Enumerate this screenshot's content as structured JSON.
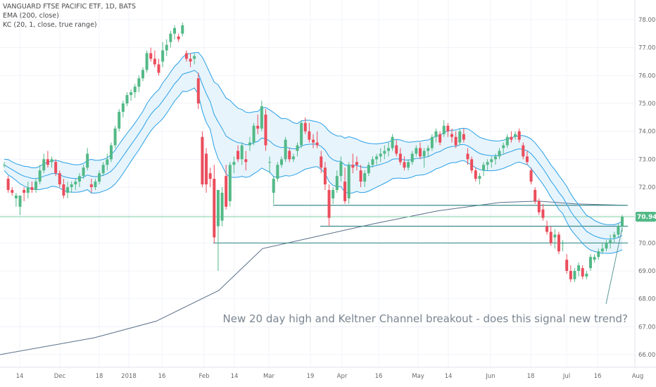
{
  "legend": {
    "symbol": "VANGUARD FTSE PACIFIC ETF, 1D, BATS",
    "ema": "EMA (200, close)",
    "kc": "KC (20, 1, close, true range)"
  },
  "annotation": "New 20 day high and Keltner Channel breakout - does this signal new trend?",
  "last_price": "70.94",
  "chart_data": {
    "type": "candlestick",
    "title": "VANGUARD FTSE PACIFIC ETF, 1D, BATS",
    "ylim": [
      65.6,
      78.4
    ],
    "y_ticks": [
      "66.00",
      "67.00",
      "68.00",
      "69.00",
      "70.00",
      "71.00",
      "72.00",
      "73.00",
      "74.00",
      "75.00",
      "76.00",
      "77.00",
      "78.00"
    ],
    "x_ticks": [
      "14",
      "Dec",
      "18",
      "2018",
      "16",
      "Feb",
      "14",
      "Mar",
      "19",
      "Apr",
      "16",
      "May",
      "14",
      "Jun",
      "18",
      "Jul",
      "16",
      "Aug"
    ],
    "horizontal_levels": [
      71.35,
      70.6,
      70.0,
      70.94
    ],
    "colors": {
      "up": "#53b987",
      "down": "#eb4d5c",
      "kc": "#29a0e6",
      "kc_fill": "#e3f2fc",
      "ema": "#5a6e88",
      "level": "#3c8c8c",
      "price_badge": "#53b987"
    },
    "candles": [
      [
        72.8,
        72.9,
        72.7,
        72.8
      ],
      [
        72.3,
        72.4,
        71.8,
        71.9
      ],
      [
        71.9,
        72.0,
        71.7,
        71.8
      ],
      [
        71.6,
        71.8,
        71.3,
        71.7
      ],
      [
        71.3,
        71.7,
        71.0,
        71.7
      ],
      [
        71.9,
        72.0,
        71.5,
        71.8
      ],
      [
        71.8,
        72.2,
        71.6,
        72.0
      ],
      [
        72.0,
        72.2,
        71.8,
        71.9
      ],
      [
        71.9,
        72.3,
        71.8,
        72.2
      ],
      [
        72.2,
        72.8,
        72.1,
        72.6
      ],
      [
        72.6,
        73.2,
        72.5,
        73.0
      ],
      [
        73.0,
        73.3,
        72.7,
        72.8
      ],
      [
        72.9,
        73.1,
        72.7,
        73.0
      ],
      [
        72.9,
        73.0,
        72.4,
        72.5
      ],
      [
        72.5,
        72.6,
        72.0,
        72.1
      ],
      [
        72.1,
        72.3,
        71.6,
        71.7
      ],
      [
        71.8,
        72.2,
        71.6,
        72.0
      ],
      [
        72.0,
        72.2,
        71.8,
        72.1
      ],
      [
        72.1,
        72.3,
        71.9,
        72.2
      ],
      [
        72.2,
        72.5,
        72.0,
        72.4
      ],
      [
        72.4,
        72.8,
        72.3,
        72.7
      ],
      [
        72.7,
        73.4,
        72.6,
        73.2
      ],
      [
        72.1,
        72.3,
        71.8,
        72.0
      ],
      [
        72.0,
        72.3,
        71.9,
        72.2
      ],
      [
        72.2,
        72.6,
        72.1,
        72.5
      ],
      [
        72.5,
        72.9,
        72.4,
        72.8
      ],
      [
        72.8,
        73.2,
        72.6,
        73.0
      ],
      [
        73.0,
        73.6,
        72.9,
        73.5
      ],
      [
        73.5,
        74.2,
        73.4,
        74.1
      ],
      [
        74.1,
        74.8,
        74.0,
        74.7
      ],
      [
        74.7,
        75.1,
        74.5,
        75.0
      ],
      [
        75.0,
        75.4,
        74.9,
        75.3
      ],
      [
        75.3,
        75.5,
        75.1,
        75.4
      ],
      [
        75.4,
        75.7,
        75.2,
        75.6
      ],
      [
        75.6,
        76.0,
        75.4,
        75.9
      ],
      [
        75.9,
        76.3,
        75.8,
        76.2
      ],
      [
        76.2,
        76.9,
        76.1,
        76.8
      ],
      [
        76.8,
        77.0,
        76.5,
        76.6
      ],
      [
        76.6,
        76.9,
        76.3,
        76.4
      ],
      [
        76.4,
        76.6,
        76.0,
        76.1
      ],
      [
        76.5,
        77.2,
        76.3,
        76.9
      ],
      [
        76.9,
        77.3,
        76.7,
        77.1
      ],
      [
        77.2,
        77.6,
        77.0,
        77.5
      ],
      [
        77.5,
        77.8,
        77.3,
        77.7
      ],
      [
        77.4,
        77.5,
        77.2,
        77.3
      ],
      [
        77.5,
        77.9,
        77.4,
        77.8
      ],
      [
        76.8,
        76.9,
        76.5,
        76.6
      ],
      [
        76.6,
        76.8,
        76.3,
        76.5
      ],
      [
        76.6,
        76.8,
        76.4,
        76.7
      ],
      [
        75.9,
        76.1,
        74.8,
        75.0
      ],
      [
        73.8,
        74.0,
        72.0,
        72.1
      ],
      [
        73.2,
        73.4,
        71.8,
        72.1
      ],
      [
        72.5,
        72.7,
        72.0,
        72.3
      ],
      [
        72.3,
        72.8,
        70.0,
        70.2
      ],
      [
        70.6,
        71.8,
        69.0,
        71.9
      ],
      [
        70.8,
        72.0,
        70.6,
        71.8
      ],
      [
        72.4,
        72.8,
        71.2,
        71.3
      ],
      [
        71.5,
        72.9,
        71.3,
        72.8
      ],
      [
        72.8,
        73.1,
        72.5,
        72.9
      ],
      [
        73.3,
        73.5,
        72.9,
        73.0
      ],
      [
        73.0,
        73.6,
        72.8,
        73.5
      ],
      [
        73.0,
        73.3,
        72.6,
        72.9
      ],
      [
        73.5,
        73.8,
        73.3,
        73.6
      ],
      [
        73.6,
        74.3,
        73.5,
        74.2
      ],
      [
        74.2,
        74.6,
        73.9,
        74.1
      ],
      [
        74.1,
        75.1,
        74.0,
        74.9
      ],
      [
        74.6,
        74.8,
        73.3,
        73.5
      ],
      [
        72.9,
        73.1,
        72.5,
        72.9
      ],
      [
        71.8,
        72.4,
        71.4,
        72.3
      ],
      [
        72.3,
        72.9,
        72.2,
        72.8
      ],
      [
        72.8,
        73.1,
        72.7,
        73.0
      ],
      [
        73.0,
        73.8,
        72.9,
        73.7
      ],
      [
        73.3,
        73.4,
        72.9,
        73.0
      ],
      [
        73.0,
        73.2,
        72.9,
        73.1
      ],
      [
        73.3,
        73.6,
        73.1,
        73.5
      ],
      [
        73.5,
        74.4,
        73.4,
        74.3
      ],
      [
        74.3,
        74.5,
        73.9,
        74.0
      ],
      [
        74.0,
        74.3,
        73.6,
        73.7
      ],
      [
        73.7,
        73.9,
        73.4,
        73.6
      ],
      [
        73.6,
        74.0,
        73.4,
        73.5
      ],
      [
        73.1,
        73.3,
        72.5,
        72.7
      ],
      [
        72.7,
        72.9,
        71.9,
        72.1
      ],
      [
        71.9,
        72.1,
        70.6,
        70.9
      ],
      [
        71.6,
        72.0,
        71.4,
        71.9
      ],
      [
        71.9,
        72.6,
        71.8,
        72.4
      ],
      [
        72.4,
        73.1,
        72.2,
        72.9
      ],
      [
        72.2,
        72.7,
        71.4,
        71.5
      ],
      [
        71.6,
        72.9,
        71.4,
        72.8
      ],
      [
        72.8,
        73.2,
        72.5,
        72.7
      ],
      [
        72.9,
        73.1,
        72.6,
        72.8
      ],
      [
        72.6,
        72.8,
        72.0,
        72.2
      ],
      [
        72.2,
        72.6,
        72.0,
        72.5
      ],
      [
        72.5,
        72.9,
        72.4,
        72.8
      ],
      [
        72.8,
        73.1,
        72.7,
        73.0
      ],
      [
        73.0,
        73.2,
        72.8,
        73.1
      ],
      [
        73.1,
        73.4,
        72.9,
        73.2
      ],
      [
        73.2,
        73.5,
        73.0,
        73.3
      ],
      [
        73.3,
        73.6,
        73.1,
        73.4
      ],
      [
        73.4,
        73.9,
        73.3,
        73.8
      ],
      [
        73.5,
        73.7,
        73.1,
        73.2
      ],
      [
        73.2,
        73.4,
        72.8,
        72.9
      ],
      [
        72.9,
        73.1,
        72.6,
        72.7
      ],
      [
        72.7,
        73.0,
        72.6,
        72.9
      ],
      [
        72.9,
        73.3,
        72.8,
        73.2
      ],
      [
        73.2,
        73.5,
        73.1,
        73.4
      ],
      [
        73.4,
        73.6,
        73.0,
        73.1
      ],
      [
        73.1,
        73.4,
        72.7,
        73.3
      ],
      [
        73.3,
        73.5,
        73.1,
        73.4
      ],
      [
        73.4,
        73.9,
        73.3,
        73.8
      ],
      [
        73.8,
        74.1,
        73.6,
        74.0
      ],
      [
        73.9,
        74.0,
        73.5,
        73.6
      ],
      [
        73.9,
        74.4,
        73.8,
        74.2
      ],
      [
        74.2,
        74.3,
        73.8,
        74.0
      ],
      [
        73.9,
        74.1,
        73.6,
        73.8
      ],
      [
        73.8,
        74.0,
        73.4,
        73.5
      ],
      [
        73.6,
        74.1,
        73.5,
        74.0
      ],
      [
        73.9,
        74.1,
        73.6,
        73.7
      ],
      [
        73.2,
        73.4,
        72.8,
        73.0
      ],
      [
        73.0,
        73.1,
        72.5,
        72.6
      ],
      [
        72.6,
        72.7,
        72.2,
        72.3
      ],
      [
        72.3,
        72.5,
        72.1,
        72.4
      ],
      [
        72.6,
        72.9,
        72.4,
        72.8
      ],
      [
        72.8,
        73.0,
        72.6,
        72.9
      ],
      [
        72.9,
        73.1,
        72.7,
        73.0
      ],
      [
        73.0,
        73.2,
        72.8,
        73.1
      ],
      [
        73.1,
        73.4,
        73.0,
        73.3
      ],
      [
        73.4,
        73.6,
        73.2,
        73.5
      ],
      [
        73.5,
        73.9,
        73.4,
        73.8
      ],
      [
        73.8,
        74.0,
        73.6,
        73.7
      ],
      [
        73.8,
        74.0,
        73.7,
        73.9
      ],
      [
        74.0,
        74.1,
        73.6,
        73.7
      ],
      [
        73.5,
        73.6,
        73.0,
        73.1
      ],
      [
        73.1,
        73.3,
        72.8,
        72.9
      ],
      [
        72.6,
        72.7,
        72.1,
        72.2
      ],
      [
        71.9,
        72.0,
        71.4,
        71.5
      ],
      [
        71.5,
        71.6,
        71.0,
        71.1
      ],
      [
        71.2,
        71.4,
        70.8,
        70.9
      ],
      [
        70.6,
        70.8,
        70.3,
        70.4
      ],
      [
        70.4,
        70.6,
        69.9,
        70.0
      ],
      [
        70.2,
        70.5,
        69.8,
        70.3
      ],
      [
        70.3,
        70.4,
        69.6,
        69.7
      ],
      [
        70.0,
        70.1,
        69.7,
        70.0
      ],
      [
        69.4,
        69.6,
        68.9,
        69.0
      ],
      [
        69.0,
        69.2,
        68.6,
        68.7
      ],
      [
        68.7,
        69.1,
        68.6,
        69.0
      ],
      [
        69.0,
        69.3,
        68.8,
        69.2
      ],
      [
        69.1,
        69.2,
        68.7,
        68.8
      ],
      [
        68.8,
        69.0,
        68.7,
        68.9
      ],
      [
        69.1,
        69.6,
        69.0,
        69.5
      ],
      [
        69.4,
        69.6,
        69.3,
        69.5
      ],
      [
        69.5,
        69.8,
        69.4,
        69.7
      ],
      [
        69.7,
        70.0,
        69.6,
        69.8
      ],
      [
        69.8,
        70.1,
        69.7,
        70.0
      ],
      [
        70.0,
        70.3,
        69.8,
        70.1
      ],
      [
        70.2,
        70.4,
        70.0,
        70.3
      ],
      [
        70.3,
        70.7,
        70.2,
        70.6
      ],
      [
        70.6,
        71.0,
        70.4,
        70.94
      ]
    ]
  }
}
